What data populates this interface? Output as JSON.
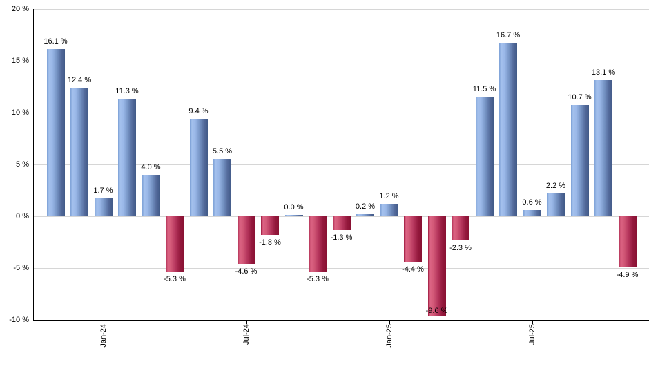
{
  "chart_data": {
    "type": "bar",
    "title": "",
    "xlabel": "",
    "ylabel": "",
    "values": [
      16.1,
      12.4,
      1.7,
      11.3,
      4.0,
      -5.3,
      9.4,
      5.5,
      -4.6,
      -1.8,
      0.0,
      -5.3,
      -1.3,
      0.2,
      1.2,
      -4.4,
      -9.6,
      -2.3,
      11.5,
      16.7,
      0.6,
      2.2,
      10.7,
      13.1,
      -4.9
    ],
    "value_labels": [
      "16.1 %",
      "12.4 %",
      "1.7 %",
      "11.3 %",
      "4.0 %",
      "-5.3 %",
      "9.4 %",
      "5.5 %",
      "-4.6 %",
      "-1.8 %",
      "0.0 %",
      "-5.3 %",
      "-1.3 %",
      "0.2 %",
      "1.2 %",
      "-4.4 %",
      "-9.6 %",
      "-2.3 %",
      "11.5 %",
      "16.7 %",
      "0.6 %",
      "2.2 %",
      "10.7 %",
      "13.1 %",
      "-4.9 %"
    ],
    "x_tick_labels": [
      {
        "index": 2,
        "label": "Jan-24"
      },
      {
        "index": 8,
        "label": "Jul-24"
      },
      {
        "index": 14,
        "label": "Jan-25"
      },
      {
        "index": 20,
        "label": "Jul-25"
      }
    ],
    "y_ticks": [
      {
        "value": 20,
        "label": "20 %"
      },
      {
        "value": 15,
        "label": "15 %"
      },
      {
        "value": 10,
        "label": "10 %"
      },
      {
        "value": 5,
        "label": "5 %"
      },
      {
        "value": 0,
        "label": "0 %"
      },
      {
        "value": -5,
        "label": "-5 %"
      },
      {
        "value": -10,
        "label": "-10 %"
      }
    ],
    "ylim": [
      -10,
      20
    ],
    "grid": true,
    "legend": false,
    "reference_line": {
      "value": 10,
      "color": "#008000"
    },
    "colors": {
      "positive_bar_stops": [
        "#7da1d6",
        "#a4c1ed",
        "#9ab8e8",
        "#7593c4",
        "#52699a",
        "#415a87"
      ],
      "negative_bar_stops": [
        "#a01d42",
        "#dc6484",
        "#d25877",
        "#b5355c",
        "#93183c",
        "#891133"
      ],
      "gridline": "#d6d6d6",
      "axis": "#000000",
      "label_text": "#000000",
      "background": "#ffffff"
    }
  }
}
